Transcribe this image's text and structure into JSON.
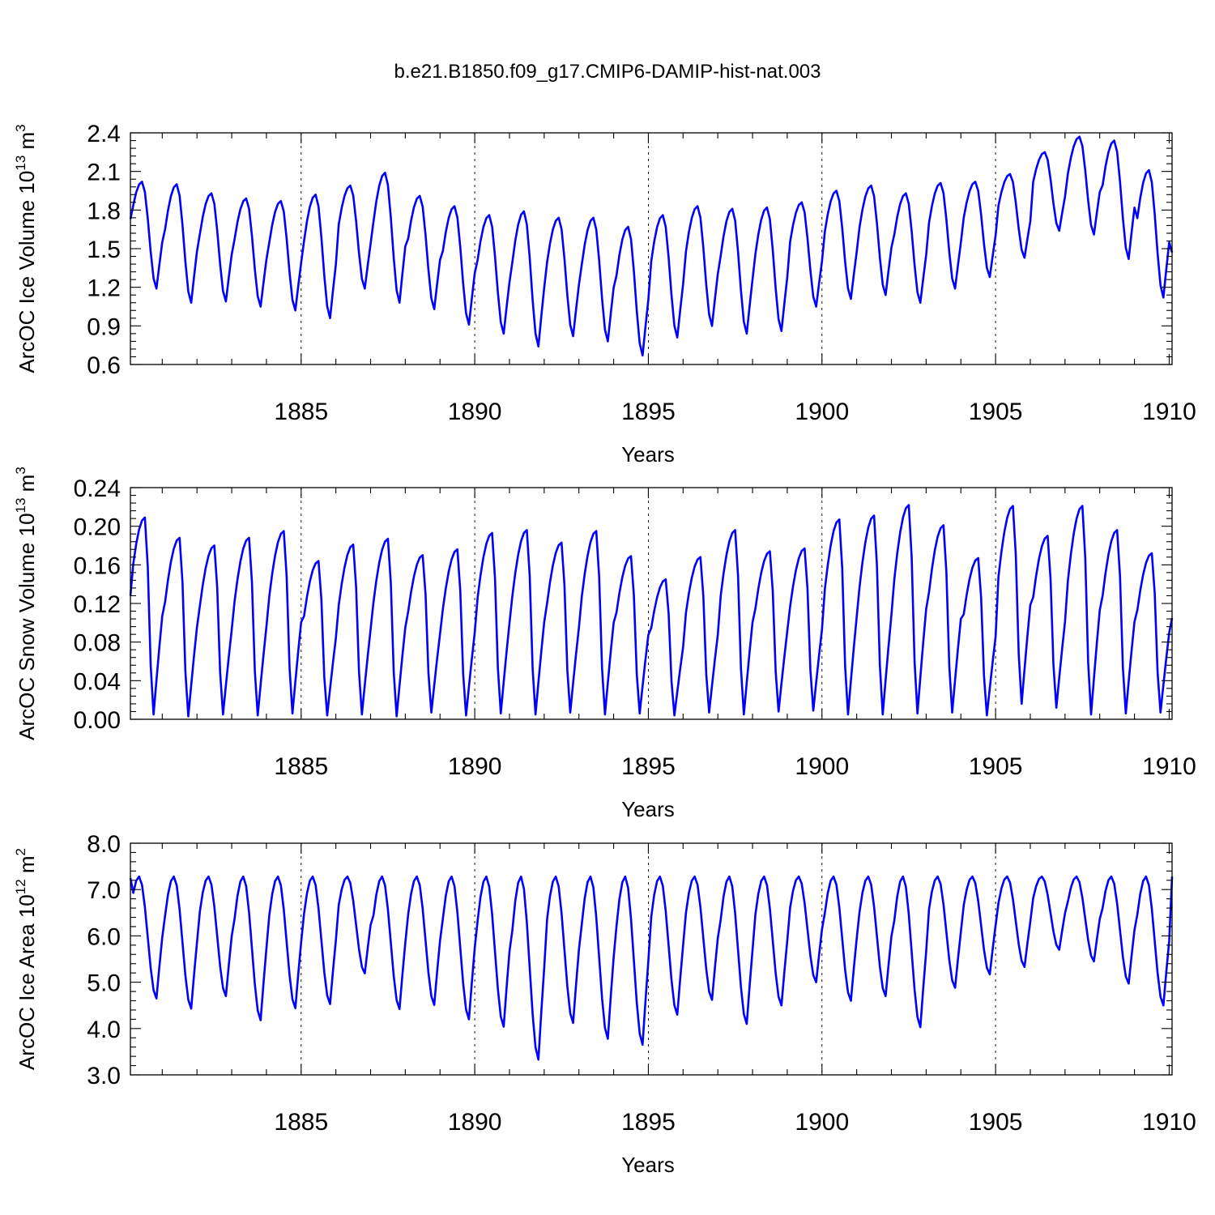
{
  "figure_title": "b.e21.B1850.f09_g17.CMIP6-DAMIP-hist-nat.003",
  "colors": {
    "series": "#0000ff",
    "axis": "#000000"
  },
  "chart_data": [
    {
      "type": "line",
      "title": "",
      "xlabel": "Years",
      "ylabel_text": "ArcOC Ice Volume 10",
      "ylabel_sup": "13",
      "ylabel_unit": " m",
      "ylabel_unit_sup": "3",
      "xlim": [
        1880.083,
        1910.083
      ],
      "ylim": [
        0.6,
        2.4
      ],
      "xticks": [
        1885,
        1890,
        1895,
        1900,
        1905,
        1910
      ],
      "xtick_labels": [
        "1885",
        "1890",
        "1895",
        "1900",
        "1905",
        "1910"
      ],
      "yticks": [
        0.6,
        0.9,
        1.2,
        1.5,
        1.8,
        2.1,
        2.4
      ],
      "ytick_labels": [
        "0.6",
        "0.9",
        "1.2",
        "1.5",
        "1.8",
        "2.1",
        "2.4"
      ],
      "grid": "dashed verticals at major x ticks",
      "seasonal": {
        "peak_month": 4,
        "min_month": 9
      },
      "series": [
        {
          "yearly_max": [
            2.02,
            2.0,
            1.93,
            1.89,
            1.87,
            1.92,
            1.99,
            2.09,
            1.91,
            1.83,
            1.76,
            1.79,
            1.74,
            1.74,
            1.67,
            1.76,
            1.83,
            1.81,
            1.82,
            1.86,
            1.95,
            1.99,
            1.93,
            2.01,
            2.02,
            2.08,
            2.25,
            2.37,
            2.34,
            2.11
          ],
          "yearly_min": [
            1.19,
            1.08,
            1.09,
            1.05,
            1.02,
            0.96,
            1.19,
            1.08,
            1.03,
            0.91,
            0.84,
            0.74,
            0.82,
            0.78,
            0.67,
            0.81,
            0.9,
            0.84,
            0.86,
            1.05,
            1.11,
            1.14,
            1.08,
            1.19,
            1.28,
            1.43,
            1.64,
            1.61,
            1.42,
            1.12
          ],
          "start_value": 1.73,
          "end_value": 1.47
        }
      ]
    },
    {
      "type": "line",
      "title": "",
      "xlabel": "Years",
      "ylabel_text": "ArcOC Snow Volume 10",
      "ylabel_sup": "13",
      "ylabel_unit": " m",
      "ylabel_unit_sup": "3",
      "xlim": [
        1880.083,
        1910.083
      ],
      "ylim": [
        0.0,
        0.24
      ],
      "xticks": [
        1885,
        1890,
        1895,
        1900,
        1905,
        1910
      ],
      "xtick_labels": [
        "1885",
        "1890",
        "1895",
        "1900",
        "1905",
        "1910"
      ],
      "yticks": [
        0.0,
        0.04,
        0.08,
        0.12,
        0.16,
        0.2,
        0.24
      ],
      "ytick_labels": [
        "0.00",
        "0.04",
        "0.08",
        "0.12",
        "0.16",
        "0.20",
        "0.24"
      ],
      "grid": "dashed verticals at major x ticks",
      "seasonal": {
        "peak_month": 5,
        "min_month": 8
      },
      "series": [
        {
          "yearly_max": [
            0.209,
            0.188,
            0.18,
            0.188,
            0.195,
            0.164,
            0.181,
            0.187,
            0.17,
            0.176,
            0.193,
            0.196,
            0.183,
            0.195,
            0.169,
            0.145,
            0.168,
            0.196,
            0.174,
            0.177,
            0.207,
            0.211,
            0.222,
            0.201,
            0.167,
            0.221,
            0.19,
            0.221,
            0.196,
            0.172
          ],
          "yearly_min": [
            0.005,
            0.003,
            0.005,
            0.004,
            0.006,
            0.004,
            0.005,
            0.003,
            0.007,
            0.004,
            0.006,
            0.005,
            0.007,
            0.005,
            0.006,
            0.004,
            0.007,
            0.005,
            0.008,
            0.009,
            0.005,
            0.005,
            0.006,
            0.007,
            0.004,
            0.016,
            0.012,
            0.005,
            0.006,
            0.007
          ],
          "start_value": 0.128,
          "end_value": 0.105
        }
      ]
    },
    {
      "type": "line",
      "title": "",
      "xlabel": "Years",
      "ylabel_text": "ArcOC Ice Area 10",
      "ylabel_sup": "12",
      "ylabel_unit": " m",
      "ylabel_unit_sup": "2",
      "xlim": [
        1880.083,
        1910.083
      ],
      "ylim": [
        3.0,
        8.0
      ],
      "xticks": [
        1885,
        1890,
        1895,
        1900,
        1905,
        1910
      ],
      "xtick_labels": [
        "1885",
        "1890",
        "1895",
        "1900",
        "1905",
        "1910"
      ],
      "yticks": [
        3.0,
        4.0,
        5.0,
        6.0,
        7.0,
        8.0
      ],
      "ytick_labels": [
        "3.0",
        "4.0",
        "5.0",
        "6.0",
        "7.0",
        "8.0"
      ],
      "grid": "dashed verticals at major x ticks",
      "seasonal": {
        "peak_month": 3,
        "min_month": 9
      },
      "series": [
        {
          "yearly_max": [
            7.28,
            7.28,
            7.28,
            7.28,
            7.28,
            7.28,
            7.28,
            7.28,
            7.28,
            7.28,
            7.28,
            7.28,
            7.28,
            7.28,
            7.28,
            7.28,
            7.28,
            7.28,
            7.28,
            7.28,
            7.28,
            7.28,
            7.28,
            7.28,
            7.28,
            7.28,
            7.28,
            7.28,
            7.28,
            7.28
          ],
          "yearly_min": [
            4.65,
            4.43,
            4.7,
            4.18,
            4.44,
            4.53,
            5.19,
            4.42,
            4.51,
            4.2,
            4.04,
            3.33,
            4.12,
            3.78,
            3.65,
            4.3,
            4.62,
            4.1,
            4.5,
            5.0,
            4.6,
            4.7,
            4.03,
            4.88,
            5.17,
            5.33,
            5.7,
            5.45,
            4.97,
            4.5
          ],
          "start_value": 7.25,
          "end_value": 7.28
        }
      ]
    }
  ]
}
